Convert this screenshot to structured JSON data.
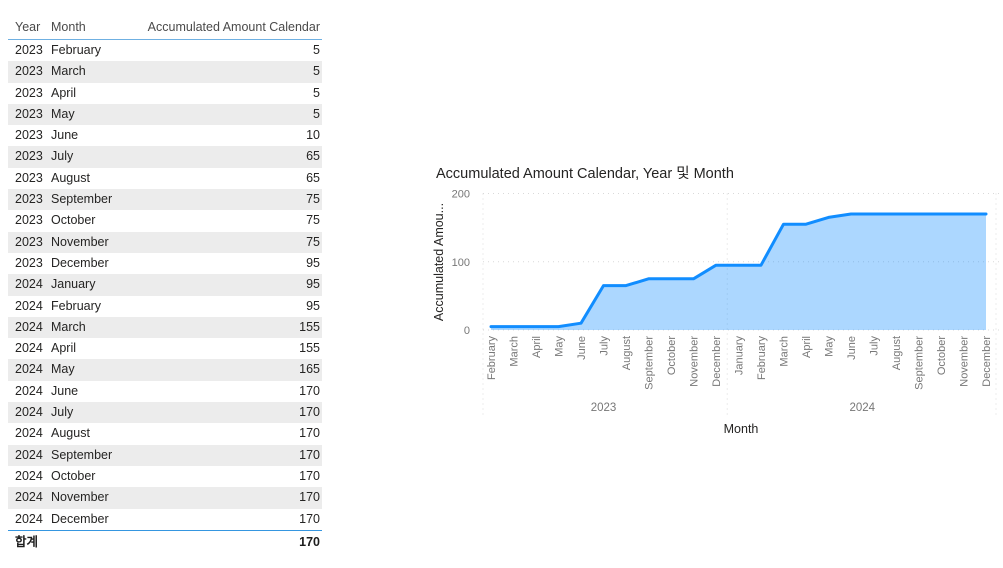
{
  "table": {
    "columns": [
      "Year",
      "Month",
      "Accumulated Amount Calendar"
    ],
    "rows": [
      [
        "2023",
        "February",
        "5"
      ],
      [
        "2023",
        "March",
        "5"
      ],
      [
        "2023",
        "April",
        "5"
      ],
      [
        "2023",
        "May",
        "5"
      ],
      [
        "2023",
        "June",
        "10"
      ],
      [
        "2023",
        "July",
        "65"
      ],
      [
        "2023",
        "August",
        "65"
      ],
      [
        "2023",
        "September",
        "75"
      ],
      [
        "2023",
        "October",
        "75"
      ],
      [
        "2023",
        "November",
        "75"
      ],
      [
        "2023",
        "December",
        "95"
      ],
      [
        "2024",
        "January",
        "95"
      ],
      [
        "2024",
        "February",
        "95"
      ],
      [
        "2024",
        "March",
        "155"
      ],
      [
        "2024",
        "April",
        "155"
      ],
      [
        "2024",
        "May",
        "165"
      ],
      [
        "2024",
        "June",
        "170"
      ],
      [
        "2024",
        "July",
        "170"
      ],
      [
        "2024",
        "August",
        "170"
      ],
      [
        "2024",
        "September",
        "170"
      ],
      [
        "2024",
        "October",
        "170"
      ],
      [
        "2024",
        "November",
        "170"
      ],
      [
        "2024",
        "December",
        "170"
      ]
    ],
    "total_label": "합계",
    "total_value": "170"
  },
  "chart": {
    "y_axis_title_truncated": "Accumulated Amou...",
    "x_axis_title": "Month"
  },
  "chart_data": {
    "type": "area",
    "title": "Accumulated Amount Calendar, Year 및 Month",
    "xlabel": "Month",
    "ylabel": "Accumulated Amount Calendar",
    "ylim": [
      0,
      200
    ],
    "yticks": [
      0,
      100,
      200
    ],
    "grid": "dotted",
    "legend": "none",
    "categories": [
      "February",
      "March",
      "April",
      "May",
      "June",
      "July",
      "August",
      "September",
      "October",
      "November",
      "December",
      "January",
      "February",
      "March",
      "April",
      "May",
      "June",
      "July",
      "August",
      "September",
      "October",
      "November",
      "December"
    ],
    "year_spans": [
      {
        "label": "2023",
        "count": 11
      },
      {
        "label": "2024",
        "count": 12
      }
    ],
    "series": [
      {
        "name": "Accumulated Amount Calendar",
        "values": [
          5,
          5,
          5,
          5,
          10,
          65,
          65,
          75,
          75,
          75,
          95,
          95,
          95,
          155,
          155,
          165,
          170,
          170,
          170,
          170,
          170,
          170,
          170
        ]
      }
    ]
  },
  "colors": {
    "accent_line": "#118DFF",
    "area_fill": "rgba(17,141,255,0.35)",
    "grid": "#D9D9D9",
    "axis_text": "#777777",
    "dark_text": "#252423"
  }
}
